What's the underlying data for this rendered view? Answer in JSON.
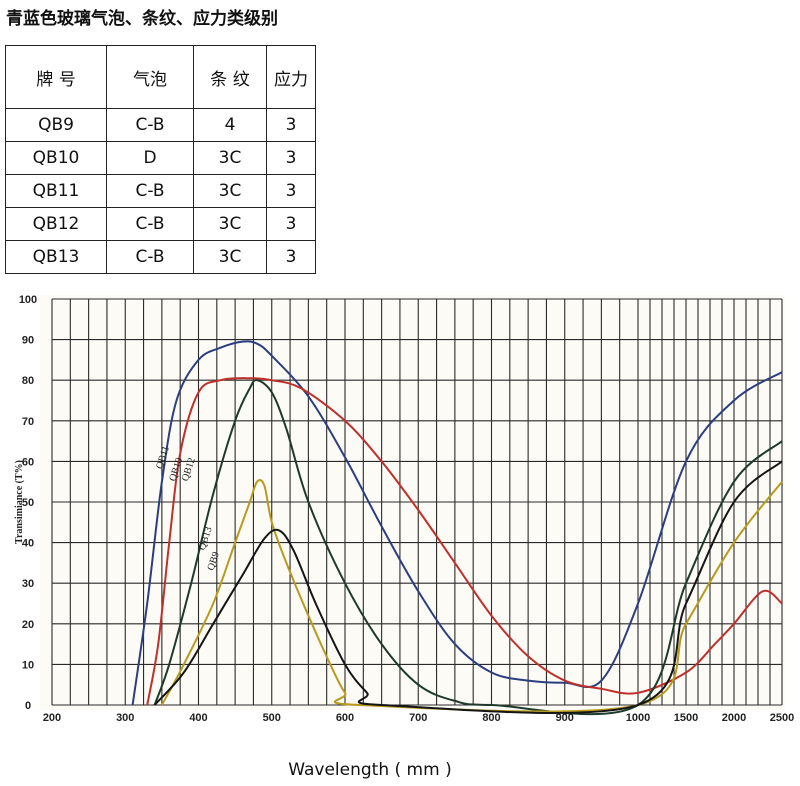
{
  "title": "青蓝色玻璃气泡、条纹、应力类级别",
  "table": {
    "headers": [
      "牌 号",
      "气泡",
      "条 纹",
      "应力"
    ],
    "rows": [
      [
        "QB9",
        "C-B",
        "4",
        "3"
      ],
      [
        "QB10",
        "D",
        "3C",
        "3"
      ],
      [
        "QB11",
        "C-B",
        "3C",
        "3"
      ],
      [
        "QB12",
        "C-B",
        "3C",
        "3"
      ],
      [
        "QB13",
        "C-B",
        "3C",
        "3"
      ]
    ]
  },
  "chart_data": {
    "type": "line",
    "xlabel": "Wavelength ( mm )",
    "ylabel": "Transimiance (T%)",
    "ylim": [
      0,
      100
    ],
    "yticks": [
      "0",
      "10",
      "20",
      "30",
      "40",
      "50",
      "60",
      "70",
      "80",
      "90",
      "100"
    ],
    "xticks": [
      "200",
      "300",
      "400",
      "500",
      "600",
      "700",
      "800",
      "900",
      "1000",
      "1500",
      "2000",
      "2500"
    ],
    "x_scale": "broken: 200-1000 linear at 100 nm per major division, 1000-2500 compressed at 500 nm per major division",
    "grid": true,
    "series": [
      {
        "name": "QB11",
        "color": "#2b3f80",
        "points": [
          [
            310,
            0
          ],
          [
            330,
            25
          ],
          [
            350,
            55
          ],
          [
            370,
            75
          ],
          [
            400,
            85
          ],
          [
            430,
            88
          ],
          [
            460,
            89.5
          ],
          [
            480,
            89
          ],
          [
            500,
            86
          ],
          [
            550,
            76
          ],
          [
            600,
            61
          ],
          [
            650,
            44
          ],
          [
            700,
            28
          ],
          [
            750,
            15
          ],
          [
            800,
            8
          ],
          [
            850,
            6
          ],
          [
            900,
            5.5
          ],
          [
            950,
            6
          ],
          [
            1000,
            25
          ],
          [
            1500,
            60
          ],
          [
            2000,
            75
          ],
          [
            2500,
            82
          ]
        ]
      },
      {
        "name": "QB10",
        "color": "#c0302b",
        "points": [
          [
            330,
            0
          ],
          [
            345,
            15
          ],
          [
            360,
            40
          ],
          [
            375,
            62
          ],
          [
            400,
            77
          ],
          [
            430,
            80
          ],
          [
            470,
            80.5
          ],
          [
            500,
            80
          ],
          [
            540,
            78
          ],
          [
            600,
            70
          ],
          [
            650,
            60
          ],
          [
            700,
            48
          ],
          [
            750,
            35
          ],
          [
            800,
            22
          ],
          [
            850,
            12
          ],
          [
            900,
            6
          ],
          [
            950,
            4
          ],
          [
            1000,
            3
          ],
          [
            1500,
            8
          ],
          [
            1800,
            15
          ],
          [
            2000,
            20
          ],
          [
            2300,
            28
          ],
          [
            2500,
            25
          ]
        ]
      },
      {
        "name": "QB12",
        "color": "#1d3a2a",
        "points": [
          [
            340,
            0
          ],
          [
            360,
            10
          ],
          [
            390,
            30
          ],
          [
            420,
            52
          ],
          [
            450,
            70
          ],
          [
            470,
            78
          ],
          [
            480,
            80
          ],
          [
            500,
            77
          ],
          [
            520,
            68
          ],
          [
            550,
            50
          ],
          [
            600,
            30
          ],
          [
            650,
            15
          ],
          [
            700,
            5
          ],
          [
            750,
            1
          ],
          [
            800,
            0
          ],
          [
            1000,
            0
          ],
          [
            1500,
            30
          ],
          [
            2000,
            55
          ],
          [
            2500,
            65
          ]
        ]
      },
      {
        "name": "QB13",
        "color": "#b89a1e",
        "points": [
          [
            350,
            0
          ],
          [
            380,
            10
          ],
          [
            420,
            25
          ],
          [
            450,
            40
          ],
          [
            470,
            50
          ],
          [
            480,
            55
          ],
          [
            490,
            54
          ],
          [
            500,
            45
          ],
          [
            520,
            35
          ],
          [
            550,
            22
          ],
          [
            580,
            10
          ],
          [
            600,
            3
          ],
          [
            620,
            0
          ],
          [
            1000,
            0
          ],
          [
            1500,
            20
          ],
          [
            2000,
            40
          ],
          [
            2500,
            55
          ]
        ]
      },
      {
        "name": "QB9",
        "color": "#151515",
        "points": [
          [
            340,
            0
          ],
          [
            380,
            8
          ],
          [
            420,
            20
          ],
          [
            460,
            32
          ],
          [
            490,
            41
          ],
          [
            510,
            43
          ],
          [
            530,
            38
          ],
          [
            560,
            25
          ],
          [
            600,
            10
          ],
          [
            630,
            3
          ],
          [
            650,
            0
          ],
          [
            1000,
            0
          ],
          [
            1500,
            25
          ],
          [
            2000,
            50
          ],
          [
            2500,
            60
          ]
        ]
      }
    ]
  }
}
